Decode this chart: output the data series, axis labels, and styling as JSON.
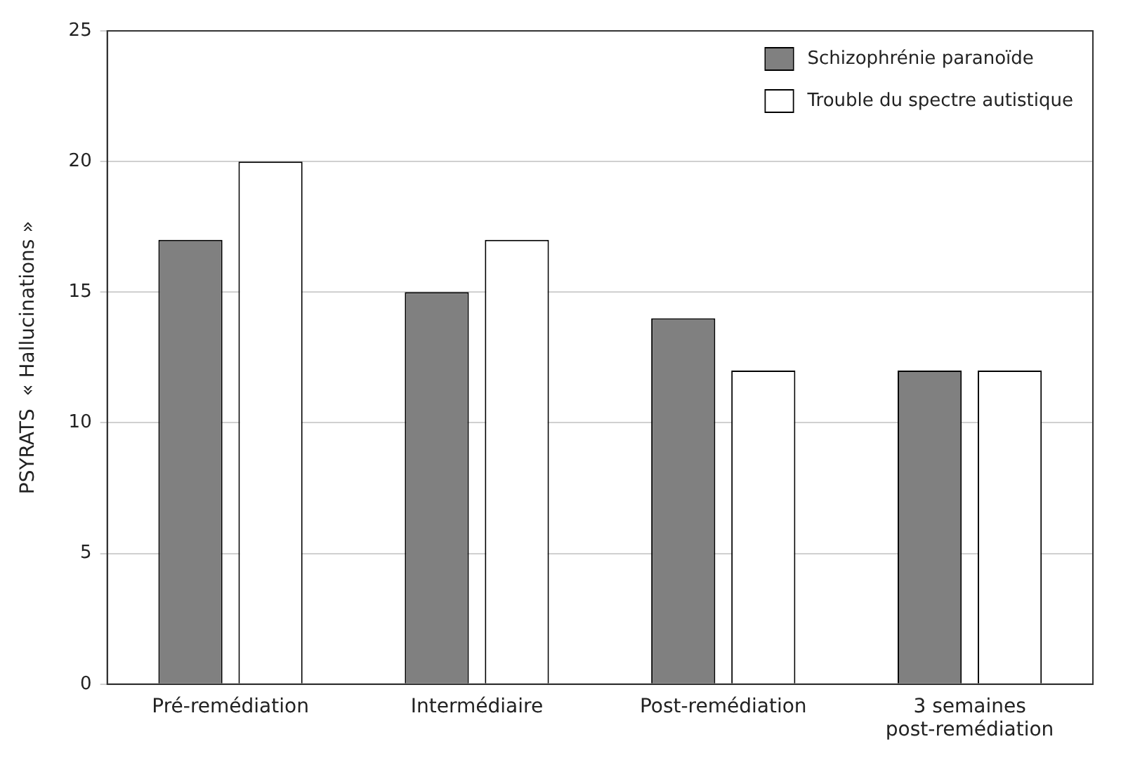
{
  "chart_data": {
    "type": "bar",
    "ylabel": "PSYRATS  « Hallucinations »",
    "categories": [
      "Pré-remédiation",
      "Intermédiaire",
      "Post-remédiation",
      "3 semaines\npost-remédiation"
    ],
    "series": [
      {
        "name": "Schizophrénie paranoïde",
        "color": "#808080",
        "values": [
          17,
          15,
          14,
          12
        ]
      },
      {
        "name": "Trouble du spectre autistique",
        "color": "#ffffff",
        "values": [
          20,
          17,
          12,
          12
        ]
      }
    ],
    "ylim": [
      0,
      25
    ],
    "yticks": [
      0,
      5,
      10,
      15,
      20,
      25
    ],
    "grid": "y",
    "legend": "top right"
  }
}
